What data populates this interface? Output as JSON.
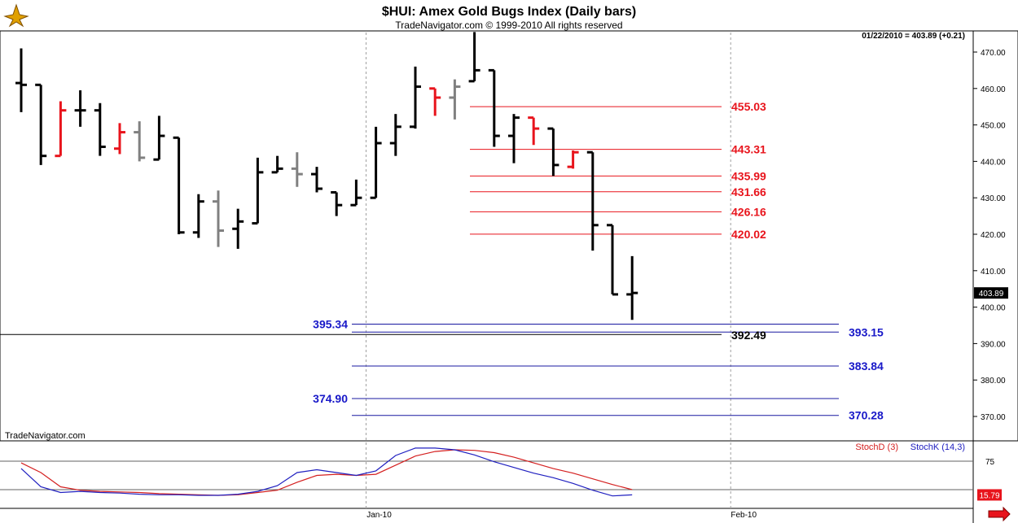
{
  "header": {
    "title": "$HUI:  Amex Gold Bugs Index  (Daily bars)",
    "subtitle": "TradeNavigator.com © 1999-2010 All rights reserved",
    "readout": "01/22/2010 = 403.89 (+0.21)",
    "watermark": "TradeNavigator.com",
    "last_price_label": "403.89"
  },
  "chart_data": [
    {
      "type": "ohlc",
      "title": "$HUI:  Amex Gold Bugs Index  (Daily bars)",
      "ylim": [
        364,
        478
      ],
      "y_ticks": [
        370,
        380,
        390,
        400,
        410,
        420,
        430,
        440,
        450,
        460,
        470
      ],
      "y_tick_labels": [
        "370.00",
        "380.00",
        "390.00",
        "400.00",
        "410.00",
        "420.00",
        "430.00",
        "440.00",
        "450.00",
        "460.00",
        "470.00"
      ],
      "x_labels": [
        {
          "label": "Jan-10",
          "index": 17.5
        },
        {
          "label": "Feb-10",
          "index": 36
        }
      ],
      "bar_colors": {
        "black": "#000000",
        "red": "#e8141c",
        "gray": "#808080"
      },
      "bars": [
        {
          "o": 461.5,
          "h": 471.0,
          "l": 453.5,
          "c": 461.0,
          "color": "black"
        },
        {
          "o": 461.0,
          "h": 461.0,
          "l": 439.0,
          "c": 441.5,
          "color": "black"
        },
        {
          "o": 441.5,
          "h": 456.5,
          "l": 441.5,
          "c": 454.0,
          "color": "red"
        },
        {
          "o": 454.0,
          "h": 459.5,
          "l": 449.5,
          "c": 454.0,
          "color": "black"
        },
        {
          "o": 454.0,
          "h": 456.0,
          "l": 441.5,
          "c": 444.0,
          "color": "black"
        },
        {
          "o": 443.5,
          "h": 450.5,
          "l": 442.0,
          "c": 448.0,
          "color": "red"
        },
        {
          "o": 448.0,
          "h": 451.0,
          "l": 440.0,
          "c": 441.0,
          "color": "gray"
        },
        {
          "o": 440.5,
          "h": 452.5,
          "l": 440.5,
          "c": 447.0,
          "color": "black"
        },
        {
          "o": 446.5,
          "h": 446.5,
          "l": 420.0,
          "c": 420.5,
          "color": "black"
        },
        {
          "o": 420.5,
          "h": 431.0,
          "l": 419.0,
          "c": 429.0,
          "color": "black"
        },
        {
          "o": 429.0,
          "h": 432.0,
          "l": 416.5,
          "c": 421.0,
          "color": "gray"
        },
        {
          "o": 421.5,
          "h": 427.0,
          "l": 416.0,
          "c": 423.5,
          "color": "black"
        },
        {
          "o": 423.0,
          "h": 441.0,
          "l": 423.0,
          "c": 437.0,
          "color": "black"
        },
        {
          "o": 437.0,
          "h": 441.5,
          "l": 437.0,
          "c": 438.0,
          "color": "black"
        },
        {
          "o": 438.0,
          "h": 442.5,
          "l": 433.0,
          "c": 436.5,
          "color": "gray"
        },
        {
          "o": 436.5,
          "h": 438.5,
          "l": 431.5,
          "c": 432.5,
          "color": "black"
        },
        {
          "o": 431.5,
          "h": 431.5,
          "l": 425.0,
          "c": 428.0,
          "color": "black"
        },
        {
          "o": 428.0,
          "h": 435.0,
          "l": 428.0,
          "c": 430.0,
          "color": "black"
        },
        {
          "o": 430.0,
          "h": 449.5,
          "l": 430.0,
          "c": 445.0,
          "color": "black"
        },
        {
          "o": 445.0,
          "h": 453.0,
          "l": 441.5,
          "c": 449.5,
          "color": "black"
        },
        {
          "o": 449.5,
          "h": 466.0,
          "l": 449.0,
          "c": 460.5,
          "color": "black"
        },
        {
          "o": 460.0,
          "h": 460.0,
          "l": 452.5,
          "c": 457.5,
          "color": "red"
        },
        {
          "o": 457.5,
          "h": 462.5,
          "l": 451.5,
          "c": 460.5,
          "color": "gray"
        },
        {
          "o": 462.0,
          "h": 475.5,
          "l": 462.0,
          "c": 465.0,
          "color": "black"
        },
        {
          "o": 465.0,
          "h": 465.0,
          "l": 444.0,
          "c": 447.0,
          "color": "black"
        },
        {
          "o": 447.0,
          "h": 453.0,
          "l": 439.5,
          "c": 452.0,
          "color": "black"
        },
        {
          "o": 452.0,
          "h": 452.0,
          "l": 444.5,
          "c": 449.0,
          "color": "red"
        },
        {
          "o": 449.0,
          "h": 449.0,
          "l": 436.0,
          "c": 439.0,
          "color": "black"
        },
        {
          "o": 438.5,
          "h": 443.0,
          "l": 438.0,
          "c": 442.5,
          "color": "red"
        },
        {
          "o": 442.5,
          "h": 442.5,
          "l": 415.5,
          "c": 422.5,
          "color": "black"
        },
        {
          "o": 422.5,
          "h": 422.5,
          "l": 403.5,
          "c": 403.5,
          "color": "black"
        },
        {
          "o": 403.5,
          "h": 414.0,
          "l": 396.5,
          "c": 403.89,
          "color": "black"
        }
      ],
      "levels_red": [
        455.03,
        443.31,
        435.99,
        431.66,
        426.16,
        420.02
      ],
      "level_labels_red": [
        "455.03",
        "443.31",
        "435.99",
        "431.66",
        "426.16",
        "420.02"
      ],
      "levels_blue": [
        {
          "value": 395.34,
          "label": "395.34",
          "side": "left"
        },
        {
          "value": 393.15,
          "label": "393.15",
          "side": "right"
        },
        {
          "value": 383.84,
          "label": "383.84",
          "side": "right"
        },
        {
          "value": 374.9,
          "label": "374.90",
          "side": "left"
        },
        {
          "value": 370.28,
          "label": "370.28",
          "side": "right"
        }
      ],
      "level_black": {
        "value": 392.49,
        "label": "392.49"
      },
      "last_price": 403.89
    },
    {
      "type": "line",
      "title": "",
      "ylim": [
        0,
        100
      ],
      "y_ticks": [
        75
      ],
      "y_tick_labels": [
        "75"
      ],
      "reference_lines": [
        75,
        25
      ],
      "series": [
        {
          "name": "StochD (3)",
          "color": "#d42020",
          "values": [
            72,
            55,
            30,
            24,
            22,
            21,
            20,
            18,
            17,
            16,
            15,
            16,
            20,
            24,
            38,
            50,
            52,
            50,
            52,
            68,
            84,
            92,
            95,
            94,
            90,
            82,
            72,
            62,
            54,
            44,
            34,
            25
          ]
        },
        {
          "name": "StochK (14,3)",
          "color": "#2020c0",
          "values": [
            62,
            30,
            20,
            22,
            20,
            19,
            17,
            16,
            16,
            15,
            15,
            17,
            22,
            32,
            55,
            60,
            55,
            50,
            58,
            85,
            98,
            98,
            95,
            86,
            74,
            64,
            54,
            46,
            36,
            24,
            14,
            15.79
          ]
        }
      ],
      "legend": [
        "StochD (3)",
        "StochK (14,3)"
      ],
      "last_value_label": "15.79"
    }
  ]
}
